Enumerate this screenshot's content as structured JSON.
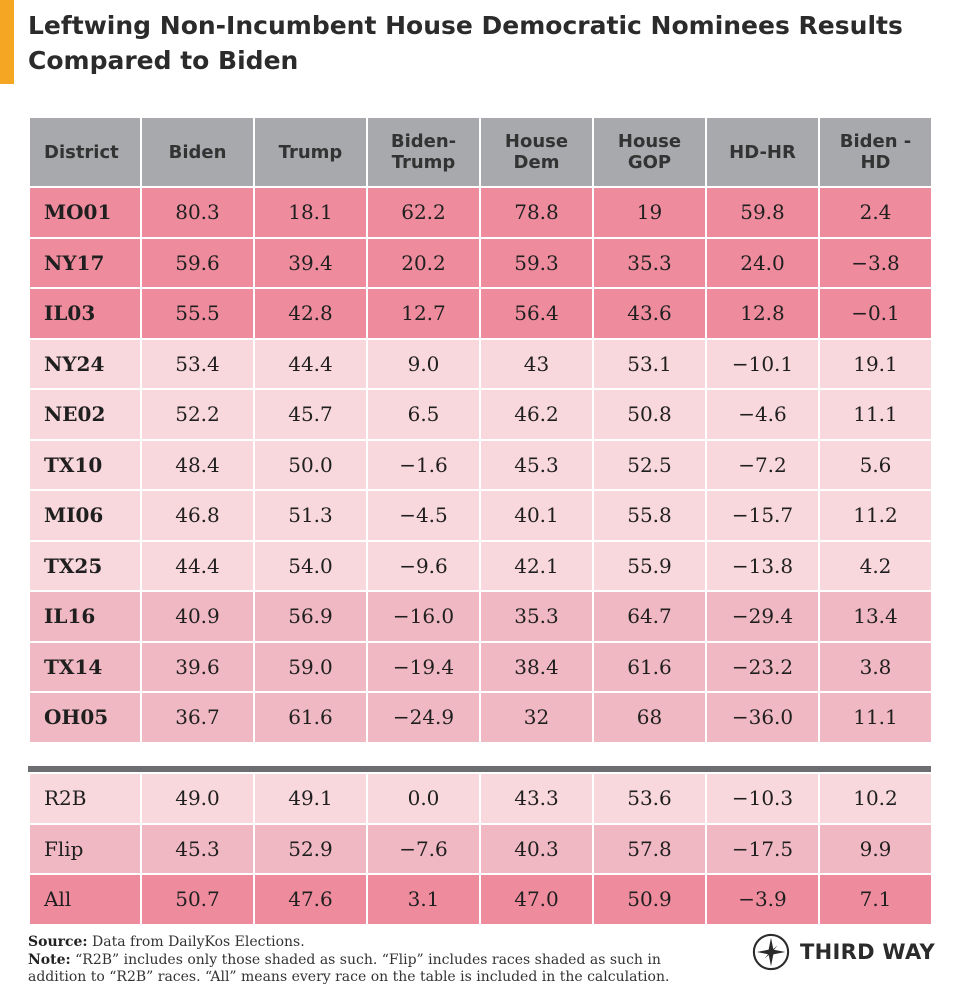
{
  "title_lines": [
    "Leftwing Non-Incumbent House Democratic Nominees Results",
    "Compared to Biden"
  ],
  "colors": {
    "accent": "#f5a623",
    "header": "#a7a9ac",
    "dark_pink": "#ee8c9e",
    "light_pink": "#f8d7dd",
    "mid_pink": "#f0b8c2",
    "divider": "#6d6e71"
  },
  "chart_data": {
    "type": "table",
    "title": "Leftwing Non-Incumbent House Democratic Nominees Results Compared to Biden",
    "columns": [
      [
        "District"
      ],
      [
        "Biden"
      ],
      [
        "Trump"
      ],
      [
        "Biden-",
        "Trump"
      ],
      [
        "House",
        "Dem"
      ],
      [
        "House",
        "GOP"
      ],
      [
        "HD-HR"
      ],
      [
        "Biden -",
        "HD"
      ]
    ],
    "rows": [
      {
        "tier": "dark",
        "cells": [
          "MO01",
          "80.3",
          "18.1",
          "62.2",
          "78.8",
          "19",
          "59.8",
          "2.4"
        ]
      },
      {
        "tier": "dark",
        "cells": [
          "NY17",
          "59.6",
          "39.4",
          "20.2",
          "59.3",
          "35.3",
          "24.0",
          "-3.8"
        ]
      },
      {
        "tier": "dark",
        "cells": [
          "IL03",
          "55.5",
          "42.8",
          "12.7",
          "56.4",
          "43.6",
          "12.8",
          "-0.1"
        ]
      },
      {
        "tier": "light",
        "cells": [
          "NY24",
          "53.4",
          "44.4",
          "9.0",
          "43",
          "53.1",
          "-10.1",
          "19.1"
        ]
      },
      {
        "tier": "light",
        "cells": [
          "NE02",
          "52.2",
          "45.7",
          "6.5",
          "46.2",
          "50.8",
          "-4.6",
          "11.1"
        ]
      },
      {
        "tier": "light",
        "cells": [
          "TX10",
          "48.4",
          "50.0",
          "-1.6",
          "45.3",
          "52.5",
          "-7.2",
          "5.6"
        ]
      },
      {
        "tier": "light",
        "cells": [
          "MI06",
          "46.8",
          "51.3",
          "-4.5",
          "40.1",
          "55.8",
          "-15.7",
          "11.2"
        ]
      },
      {
        "tier": "light",
        "cells": [
          "TX25",
          "44.4",
          "54.0",
          "-9.6",
          "42.1",
          "55.9",
          "-13.8",
          "4.2"
        ]
      },
      {
        "tier": "mid",
        "cells": [
          "IL16",
          "40.9",
          "56.9",
          "-16.0",
          "35.3",
          "64.7",
          "-29.4",
          "13.4"
        ]
      },
      {
        "tier": "mid",
        "cells": [
          "TX14",
          "39.6",
          "59.0",
          "-19.4",
          "38.4",
          "61.6",
          "-23.2",
          "3.8"
        ]
      },
      {
        "tier": "mid",
        "cells": [
          "OH05",
          "36.7",
          "61.6",
          "-24.9",
          "32",
          "68",
          "-36.0",
          "11.1"
        ]
      }
    ],
    "summary_rows": [
      {
        "tier": "light",
        "cells": [
          "R2B",
          "49.0",
          "49.1",
          "0.0",
          "43.3",
          "53.6",
          "-10.3",
          "10.2"
        ]
      },
      {
        "tier": "mid",
        "cells": [
          "Flip",
          "45.3",
          "52.9",
          "-7.6",
          "40.3",
          "57.8",
          "-17.5",
          "9.9"
        ]
      },
      {
        "tier": "dark",
        "cells": [
          "All",
          "50.7",
          "47.6",
          "3.1",
          "47.0",
          "50.9",
          "-3.9",
          "7.1"
        ]
      }
    ]
  },
  "footer": {
    "source_label": "Source:",
    "source_text": " Data from DailyKos Elections.",
    "note_label": "Note:",
    "note_text": " “R2B” includes only those shaded as such. “Flip” includes races shaded as such in addition to “R2B” races. “All” means every race on the table is included in the calculation."
  },
  "logo": {
    "text": "THIRD WAY",
    "icon": "compass-star-icon"
  }
}
